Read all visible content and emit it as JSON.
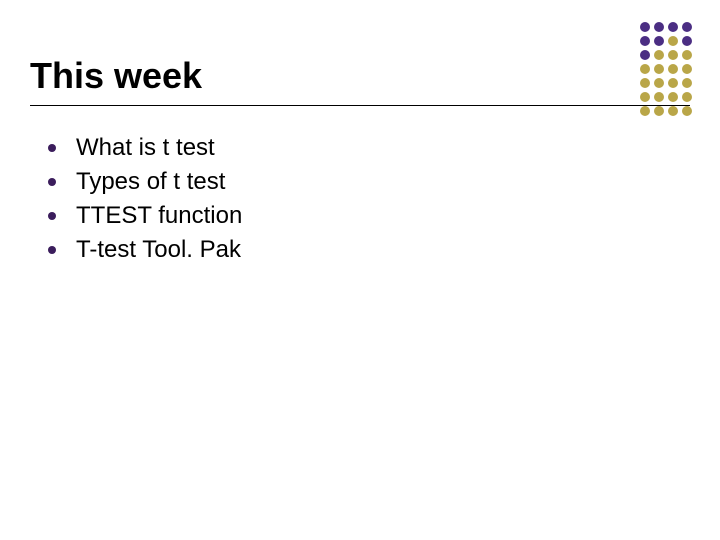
{
  "slide": {
    "title": "This week",
    "bullets": [
      "What is t test",
      "Types of t test",
      "TTEST function",
      "T-test Tool. Pak"
    ],
    "title_color": "#000000",
    "title_fontsize": 36,
    "bullet_fontsize": 24,
    "bullet_dot_color": "#3b1d5c",
    "background_color": "#ffffff",
    "underline_color": "#000000"
  },
  "decoration": {
    "rows": 7,
    "cols": 4,
    "dot_size": 10,
    "gap": 4,
    "colors": [
      [
        "#4b2e83",
        "#4b2e83",
        "#4b2e83",
        "#4b2e83"
      ],
      [
        "#4b2e83",
        "#4b2e83",
        "#b9a648",
        "#4b2e83"
      ],
      [
        "#4b2e83",
        "#b9a648",
        "#b9a648",
        "#b9a648"
      ],
      [
        "#b9a648",
        "#b9a648",
        "#b9a648",
        "#b9a648"
      ],
      [
        "#b9a648",
        "#b9a648",
        "#b9a648",
        "#b9a648"
      ],
      [
        "#b9a648",
        "#b9a648",
        "#b9a648",
        "#b9a648"
      ],
      [
        "#b9a648",
        "#b9a648",
        "#b9a648",
        "#b9a648"
      ]
    ]
  }
}
